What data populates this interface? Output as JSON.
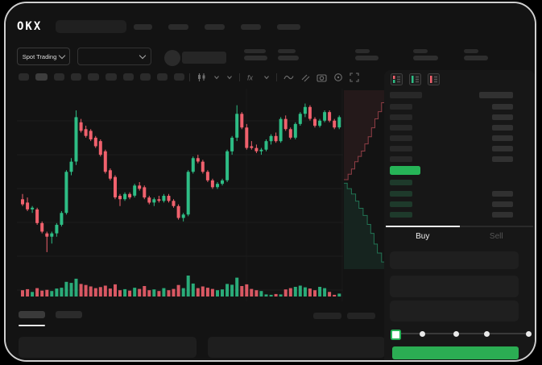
{
  "app": {
    "brand": "OKX",
    "market_selector_label": "Spot Trading",
    "buy_tab_label": "Buy",
    "sell_tab_label": "Sell"
  },
  "colors": {
    "up_green": "#2ebd85",
    "down_red": "#f0616d",
    "last_price_green": "#26b457",
    "buy_button_green": "#2bad53",
    "bid_row_tint": "#1e3a2b",
    "placeholder_gray": "#2b2b2b"
  },
  "header": {
    "nav_placeholder_widths": [
      23,
      25,
      25,
      25,
      29
    ]
  },
  "ticker_stats": {
    "groups": [
      [
        27,
        29
      ],
      [
        22,
        26
      ],
      [
        18,
        29
      ],
      [
        18,
        31
      ],
      [
        18,
        30
      ]
    ],
    "gaps": [
      13,
      70,
      43,
      32
    ]
  },
  "chart_toolbar": {
    "timeframe_widths": [
      13,
      15,
      13,
      13,
      14,
      14,
      13,
      13,
      13,
      13
    ],
    "active_index": 1,
    "icons": [
      "separator",
      "chart-type-candles",
      "chevron-down",
      "chevron-down",
      "separator",
      "indicators-fx",
      "chevron-down",
      "separator",
      "wave-line",
      "draw-tools",
      "camera-snapshot",
      "crosshair-target",
      "fullscreen"
    ]
  },
  "order_book": {
    "view_icons": [
      "book-asks-bids",
      "book-bids-only",
      "book-asks-only"
    ],
    "ask_row_count": 6,
    "bid_row_count": 4,
    "bid_rows_with_right_bar": [
      false,
      true,
      true,
      true
    ],
    "last_price_direction": "up"
  },
  "trade_panel": {
    "field_count": 3,
    "slider_stop_count": 5,
    "slider_active_index": 0
  },
  "chart_data": {
    "type": "candlestick+volume+depth",
    "title": "",
    "xlabel": "",
    "ylabel": "",
    "price_scale": [
      0,
      100
    ],
    "grid_horizontal": true,
    "x_count": 66,
    "candles_ohlc": [
      [
        40,
        43,
        36,
        37
      ],
      [
        38,
        41,
        33,
        34
      ],
      [
        34,
        36,
        32,
        35
      ],
      [
        34,
        35,
        25,
        26
      ],
      [
        26,
        27,
        20,
        21
      ],
      [
        20,
        21,
        9,
        18
      ],
      [
        18,
        21,
        14,
        20
      ],
      [
        20,
        26,
        18,
        25
      ],
      [
        25,
        33,
        24,
        32
      ],
      [
        32,
        57,
        31,
        56
      ],
      [
        56,
        64,
        54,
        62
      ],
      [
        62,
        92,
        60,
        88
      ],
      [
        85,
        87,
        79,
        80
      ],
      [
        81,
        83,
        76,
        77
      ],
      [
        80,
        81,
        74,
        75
      ],
      [
        76,
        77,
        70,
        71
      ],
      [
        74,
        75,
        65,
        66
      ],
      [
        68,
        69,
        55,
        56
      ],
      [
        57,
        58,
        51,
        52
      ],
      [
        53,
        54,
        40,
        41
      ],
      [
        42,
        43,
        36,
        40
      ],
      [
        40,
        44,
        39,
        43
      ],
      [
        43,
        44,
        40,
        41
      ],
      [
        42,
        49,
        41,
        48
      ],
      [
        48,
        50,
        45,
        46
      ],
      [
        47,
        48,
        40,
        41
      ],
      [
        41,
        42,
        37,
        38
      ],
      [
        38,
        41,
        36,
        40
      ],
      [
        40,
        42,
        38,
        39
      ],
      [
        39,
        43,
        38,
        42
      ],
      [
        42,
        43,
        38,
        39
      ],
      [
        39,
        40,
        35,
        36
      ],
      [
        36,
        37,
        28,
        29
      ],
      [
        29,
        32,
        27,
        31
      ],
      [
        31,
        57,
        30,
        56
      ],
      [
        56,
        65,
        55,
        64
      ],
      [
        64,
        66,
        61,
        62
      ],
      [
        62,
        63,
        55,
        56
      ],
      [
        56,
        57,
        50,
        51
      ],
      [
        51,
        52,
        46,
        47
      ],
      [
        47,
        50,
        46,
        49
      ],
      [
        49,
        52,
        48,
        51
      ],
      [
        51,
        69,
        50,
        68
      ],
      [
        68,
        77,
        66,
        76
      ],
      [
        76,
        95,
        74,
        90
      ],
      [
        90,
        91,
        81,
        82
      ],
      [
        82,
        84,
        69,
        70
      ],
      [
        71,
        74,
        69,
        70
      ],
      [
        70,
        72,
        67,
        68
      ],
      [
        68,
        70,
        66,
        69
      ],
      [
        69,
        75,
        68,
        74
      ],
      [
        74,
        78,
        72,
        77
      ],
      [
        77,
        79,
        73,
        74
      ],
      [
        74,
        88,
        73,
        87
      ],
      [
        87,
        89,
        80,
        81
      ],
      [
        81,
        82,
        75,
        76
      ],
      [
        76,
        85,
        75,
        84
      ],
      [
        84,
        91,
        83,
        90
      ],
      [
        90,
        96,
        88,
        94
      ],
      [
        94,
        95,
        86,
        87
      ],
      [
        87,
        88,
        82,
        83
      ],
      [
        83,
        87,
        82,
        86
      ],
      [
        86,
        92,
        85,
        91
      ],
      [
        91,
        92,
        85,
        86
      ],
      [
        86,
        87,
        81,
        82
      ],
      [
        82,
        89,
        81,
        88
      ]
    ],
    "volumes": [
      30,
      35,
      22,
      40,
      28,
      32,
      26,
      38,
      42,
      70,
      65,
      85,
      60,
      55,
      48,
      40,
      45,
      52,
      38,
      58,
      30,
      35,
      28,
      42,
      36,
      50,
      30,
      34,
      26,
      40,
      30,
      36,
      55,
      40,
      100,
      62,
      40,
      48,
      42,
      36,
      30,
      34,
      60,
      56,
      90,
      50,
      58,
      36,
      30,
      26,
      10,
      8,
      12,
      10,
      34,
      40,
      46,
      52,
      44,
      38,
      30,
      46,
      40,
      22,
      8,
      14
    ],
    "depth": {
      "asks_line": [
        [
          0,
          0.5
        ],
        [
          0.1,
          0.47
        ],
        [
          0.18,
          0.44
        ],
        [
          0.26,
          0.4
        ],
        [
          0.34,
          0.37
        ],
        [
          0.42,
          0.34
        ],
        [
          0.5,
          0.3
        ],
        [
          0.58,
          0.26
        ],
        [
          0.66,
          0.21
        ],
        [
          0.74,
          0.16
        ],
        [
          0.82,
          0.12
        ],
        [
          0.9,
          0.07
        ],
        [
          1,
          0.02
        ]
      ],
      "bids_line": [
        [
          0,
          0.52
        ],
        [
          0.08,
          0.55
        ],
        [
          0.18,
          0.58
        ],
        [
          0.28,
          0.62
        ],
        [
          0.36,
          0.66
        ],
        [
          0.46,
          0.7
        ],
        [
          0.56,
          0.75
        ],
        [
          0.64,
          0.8
        ],
        [
          0.72,
          0.86
        ],
        [
          0.8,
          0.91
        ],
        [
          0.9,
          0.96
        ],
        [
          1,
          1.0
        ]
      ]
    }
  }
}
